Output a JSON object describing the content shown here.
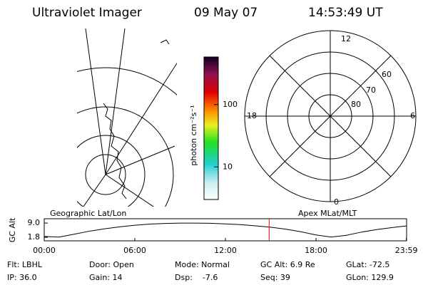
{
  "header": {
    "instrument": "Ultraviolet Imager",
    "date": "09 May 07",
    "time": "14:53:49 UT"
  },
  "map": {
    "label": "Geographic Lat/Lon"
  },
  "colorbar": {
    "label": "photon cm⁻²s⁻¹",
    "scale": "log",
    "lim": [
      3,
      580
    ],
    "ticks": [
      10,
      100
    ]
  },
  "polar": {
    "label": "Apex MLat/MLT",
    "mlt_labels": [
      "12",
      "18",
      "6",
      "0"
    ],
    "lat_labels": [
      "80",
      "70",
      "60"
    ]
  },
  "chart_data": {
    "type": "line",
    "ylabel": "GC Alt",
    "x": [
      0,
      1,
      2,
      3,
      4,
      5,
      6,
      7,
      8,
      9,
      10,
      11,
      12,
      13,
      14,
      15,
      16,
      17,
      18,
      19,
      20,
      21,
      22,
      23,
      24
    ],
    "values": [
      2.2,
      1.9,
      3.4,
      4.9,
      6.1,
      7.1,
      7.9,
      8.5,
      8.8,
      9.0,
      9.0,
      8.9,
      8.6,
      8.2,
      7.6,
      6.9,
      5.9,
      4.6,
      3.0,
      1.9,
      2.8,
      4.4,
      5.7,
      6.7,
      7.6
    ],
    "color": "#000000",
    "marker_color": "#ff0000",
    "xlim": [
      0,
      24
    ],
    "ylim": [
      0,
      11.2
    ],
    "xticks": [
      {
        "value": 0,
        "label": "00:00"
      },
      {
        "value": 6,
        "label": "06:00"
      },
      {
        "value": 12,
        "label": "12:00"
      },
      {
        "value": 18,
        "label": "18:00"
      },
      {
        "value": 23.983,
        "label": "23:59"
      }
    ],
    "yticks": [
      1.8,
      {
        "value": 9,
        "label": "9.0"
      }
    ]
  },
  "info": [
    [
      "Flt: LBHL",
      "IP: 36.0"
    ],
    [
      "Door: Open",
      "Gain: 14"
    ],
    [
      "Mode: Normal",
      "Dsp:    -7.6"
    ],
    [
      "GC Alt: 6.9 Re",
      "Seq: 39"
    ],
    [
      "GLat: -72.5",
      "GLon: 129.9"
    ]
  ]
}
